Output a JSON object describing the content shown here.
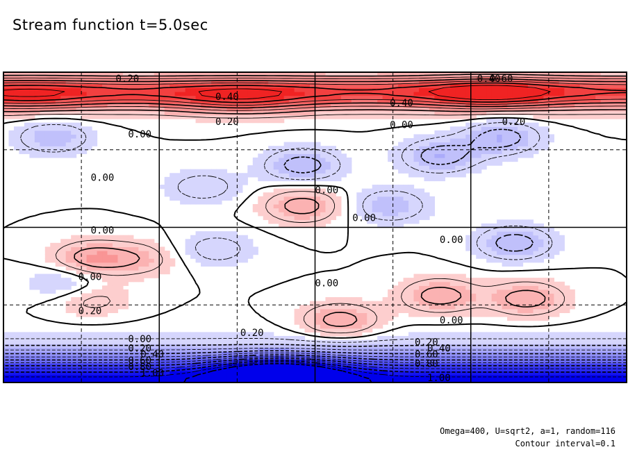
{
  "title": "Stream function t=5.0sec",
  "notes": {
    "params": "Omega=400, U=sqrt2, a=1, random=116",
    "interval": "Contour interval=0.1"
  },
  "colors": {
    "positive": "#ee2222",
    "negative": "#0000ee",
    "frame": "#000000"
  },
  "chart_data": {
    "type": "contour",
    "contour_interval": 0.1,
    "grid": true,
    "negative_lines": "dashed",
    "contour_labels": [
      {
        "text": "0.20",
        "x": 0.09,
        "y": 0.97
      },
      {
        "text": "0.40",
        "x": 0.17,
        "y": 0.91
      },
      {
        "text": "0.20",
        "x": 0.17,
        "y": 0.83
      },
      {
        "text": "0.00",
        "x": 0.1,
        "y": 0.79
      },
      {
        "text": "0.00",
        "x": 0.07,
        "y": 0.65
      },
      {
        "text": "0.00",
        "x": 0.25,
        "y": 0.61
      },
      {
        "text": "0.00",
        "x": 0.28,
        "y": 0.52
      },
      {
        "text": "0.00",
        "x": 0.07,
        "y": 0.48
      },
      {
        "text": "0.00",
        "x": 0.06,
        "y": 0.33
      },
      {
        "text": "0.20",
        "x": 0.06,
        "y": 0.22
      },
      {
        "text": "0.00",
        "x": 0.25,
        "y": 0.31
      },
      {
        "text": "0.20",
        "x": 0.19,
        "y": 0.15
      },
      {
        "text": "0.00",
        "x": 0.35,
        "y": 0.45
      },
      {
        "text": "0.40",
        "x": 0.38,
        "y": 1.0
      },
      {
        "text": "0.60",
        "x": 0.39,
        "y": 0.97
      },
      {
        "text": "0.40",
        "x": 0.31,
        "y": 0.89
      },
      {
        "text": "0.00",
        "x": 0.31,
        "y": 0.82
      },
      {
        "text": "0.20",
        "x": 0.4,
        "y": 0.83
      },
      {
        "text": "0.00",
        "x": 0.35,
        "y": 0.19
      },
      {
        "text": "0.00",
        "x": 0.1,
        "y": 0.13
      },
      {
        "text": "0.20",
        "x": 0.1,
        "y": 0.1
      },
      {
        "text": "0.40",
        "x": 0.11,
        "y": 0.08
      },
      {
        "text": "0.60",
        "x": 0.1,
        "y": 0.06
      },
      {
        "text": "0.80",
        "x": 0.1,
        "y": 0.04
      },
      {
        "text": "1.00",
        "x": 0.11,
        "y": 0.02
      },
      {
        "text": "0.20",
        "x": 0.33,
        "y": 0.12
      },
      {
        "text": "0.40",
        "x": 0.34,
        "y": 0.1
      },
      {
        "text": "0.60",
        "x": 0.33,
        "y": 0.08
      },
      {
        "text": "0.80",
        "x": 0.33,
        "y": 0.05
      },
      {
        "text": "1.00",
        "x": 0.34,
        "y": 0.0
      }
    ],
    "extrema": [
      {
        "x": 0.02,
        "y": 0.92,
        "value": 0.55
      },
      {
        "x": 0.19,
        "y": 0.91,
        "value": 0.6
      },
      {
        "x": 0.39,
        "y": 0.93,
        "value": 0.65
      },
      {
        "x": 0.04,
        "y": 0.79,
        "value": -0.2
      },
      {
        "x": 0.24,
        "y": 0.7,
        "value": -0.25
      },
      {
        "x": 0.35,
        "y": 0.73,
        "value": -0.25
      },
      {
        "x": 0.4,
        "y": 0.79,
        "value": -0.25
      },
      {
        "x": 0.16,
        "y": 0.63,
        "value": -0.15
      },
      {
        "x": 0.24,
        "y": 0.57,
        "value": 0.25
      },
      {
        "x": 0.31,
        "y": 0.57,
        "value": -0.2
      },
      {
        "x": 0.07,
        "y": 0.4,
        "value": 0.25
      },
      {
        "x": 0.11,
        "y": 0.4,
        "value": 0.15
      },
      {
        "x": 0.17,
        "y": 0.43,
        "value": -0.15
      },
      {
        "x": 0.41,
        "y": 0.45,
        "value": -0.25
      },
      {
        "x": 0.27,
        "y": 0.2,
        "value": 0.25
      },
      {
        "x": 0.07,
        "y": 0.27,
        "value": 0.15
      },
      {
        "x": 0.05,
        "y": 0.32,
        "value": -0.15
      },
      {
        "x": 0.35,
        "y": 0.28,
        "value": 0.25
      },
      {
        "x": 0.42,
        "y": 0.27,
        "value": 0.25
      },
      {
        "x": 0.22,
        "y": 0.03,
        "value": -1.1
      }
    ]
  }
}
